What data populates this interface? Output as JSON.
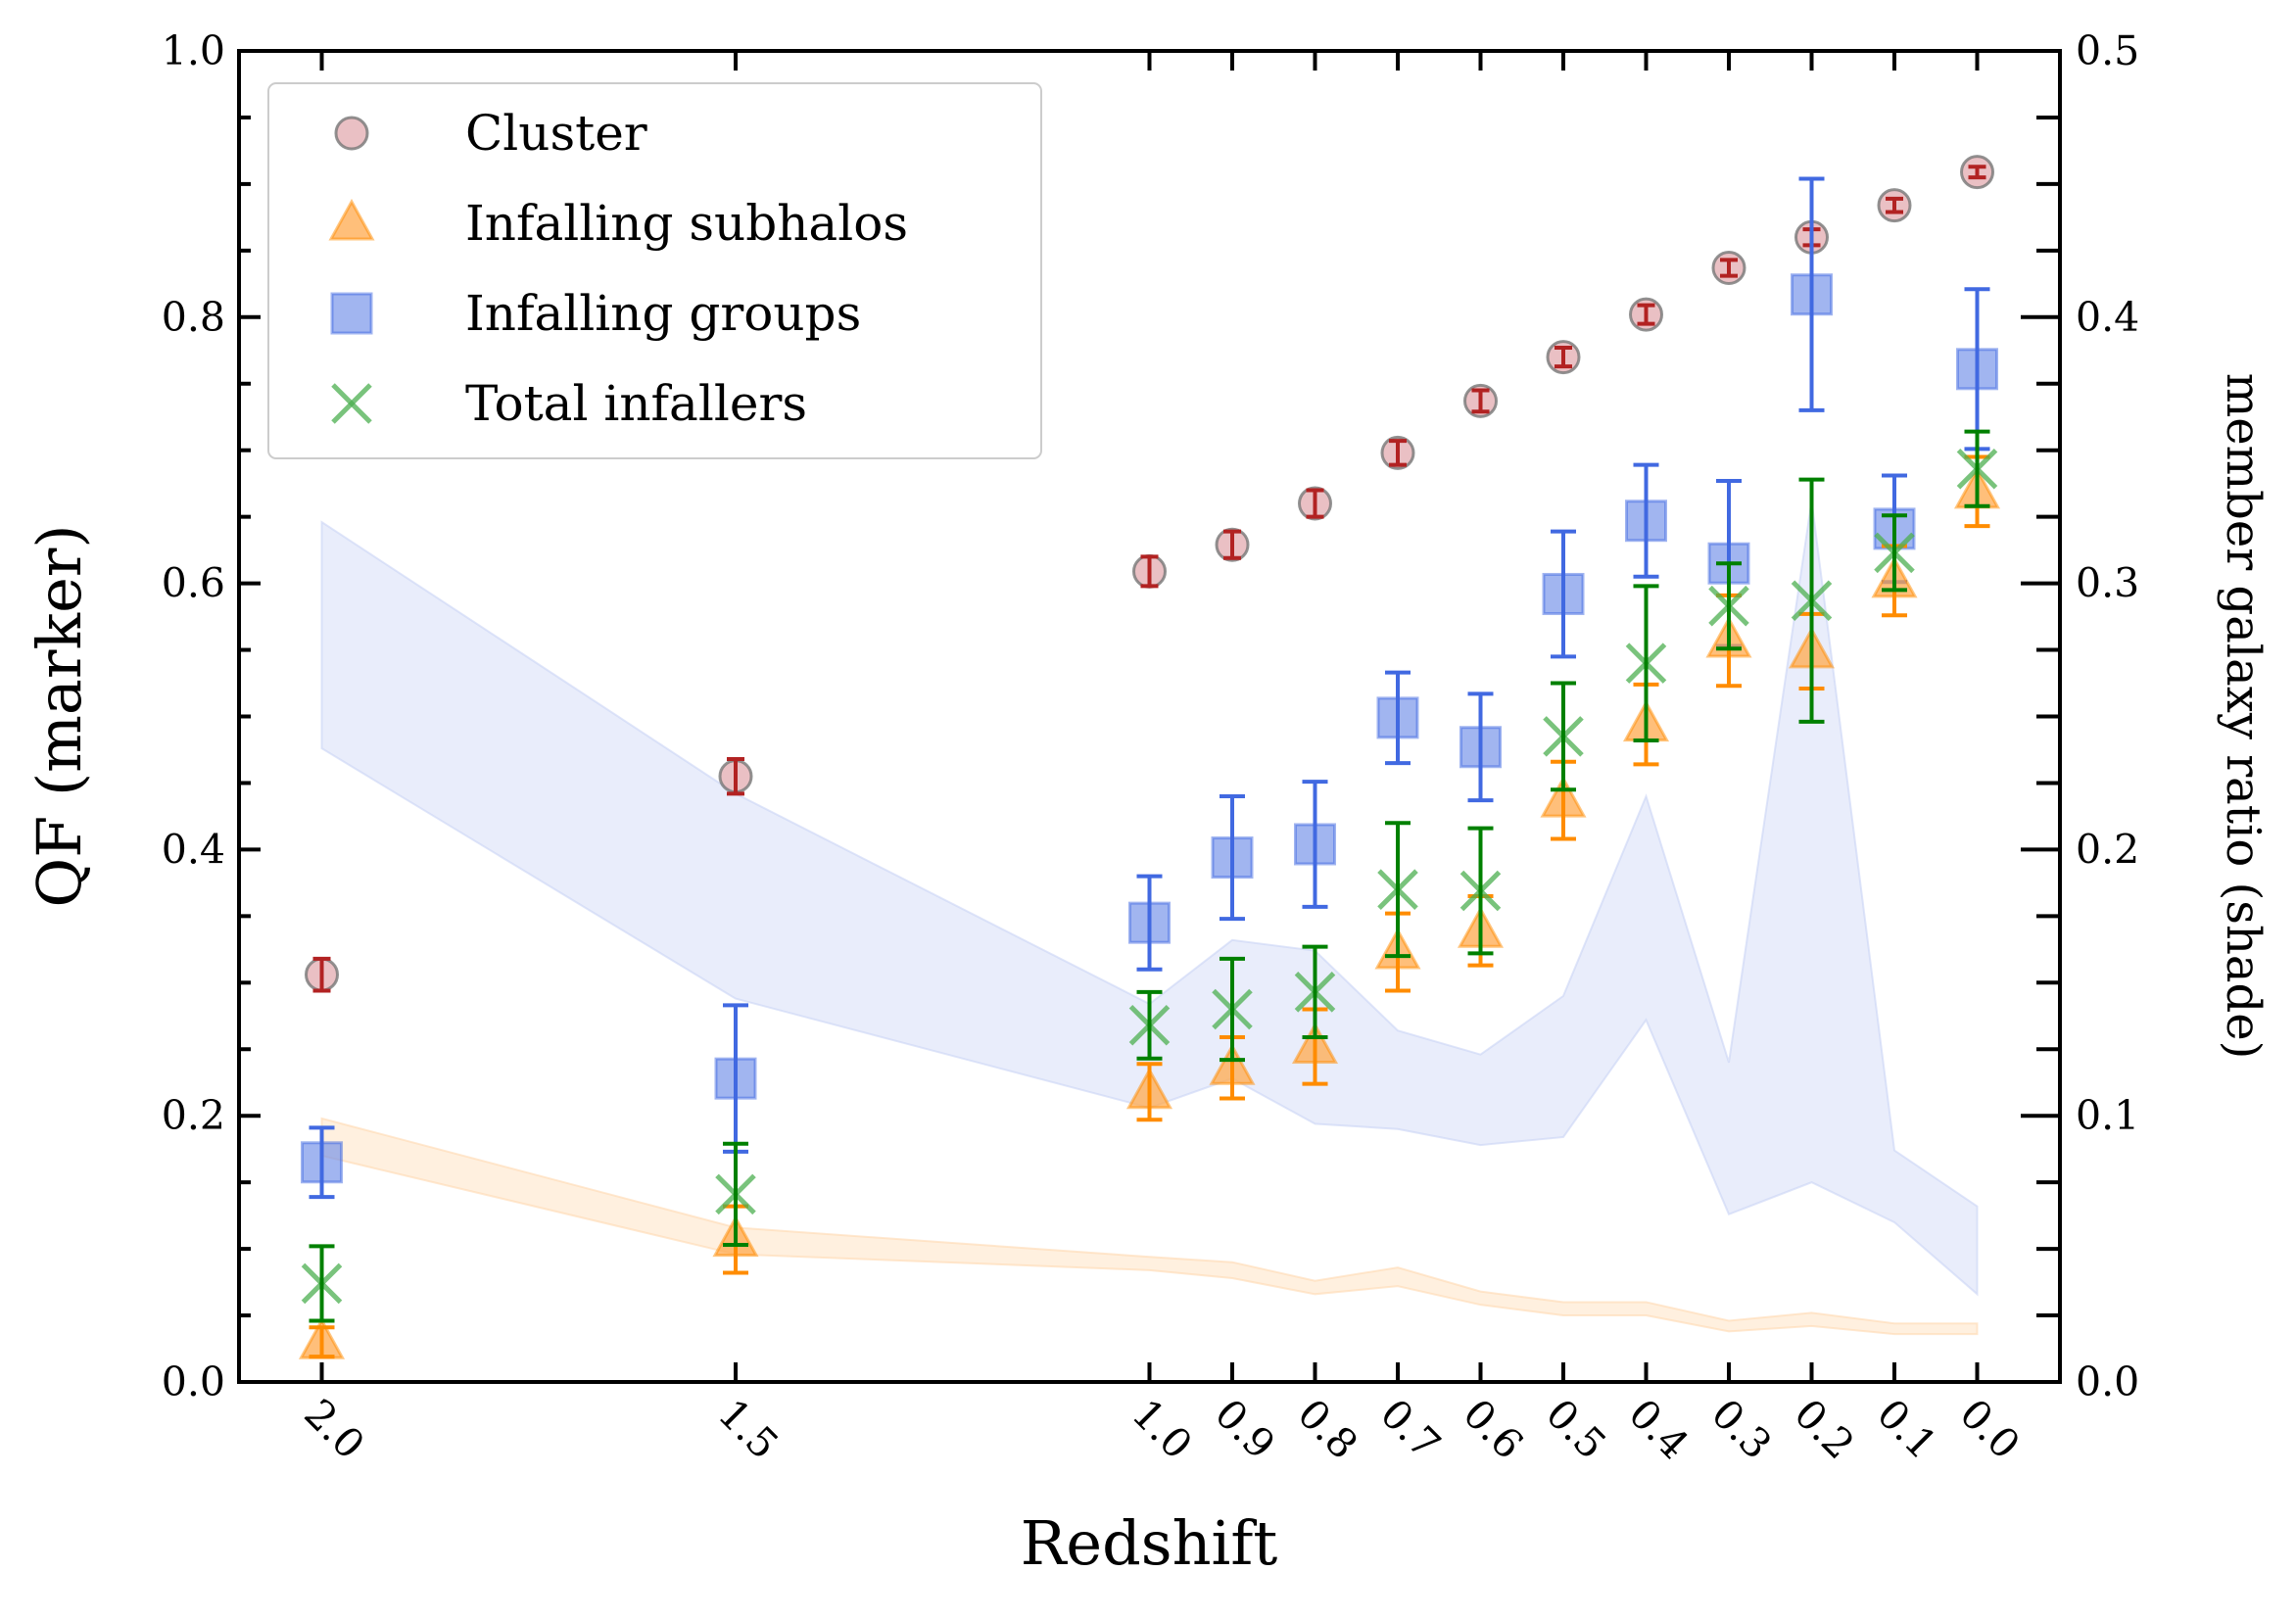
{
  "chart_data": {
    "type": "scatter",
    "xlabel": "Redshift",
    "ylabel": "QF (marker)",
    "ylabel_right": "member galaxy ratio (shade)",
    "xlim": [
      2.1,
      -0.1
    ],
    "ylim": [
      0.0,
      1.0
    ],
    "ylim_right": [
      0.0,
      0.5
    ],
    "x_ticks": [
      "2.0",
      "1.5",
      "1.0",
      "0.9",
      "0.8",
      "0.7",
      "0.6",
      "0.5",
      "0.4",
      "0.3",
      "0.2",
      "0.1",
      "0.0"
    ],
    "y_ticks": [
      "0.0",
      "0.2",
      "0.4",
      "0.6",
      "0.8",
      "1.0"
    ],
    "y_ticks_right": [
      "0.0",
      "0.1",
      "0.2",
      "0.3",
      "0.4",
      "0.5"
    ],
    "grid": false,
    "legend_position": "top-left",
    "x": [
      2.0,
      1.5,
      1.0,
      0.9,
      0.8,
      0.7,
      0.6,
      0.5,
      0.4,
      0.3,
      0.2,
      0.1,
      0.0
    ],
    "series": [
      {
        "name": "Cluster",
        "marker": "circle",
        "color": "#b22222",
        "fill": "#d98c93",
        "values": [
          0.306,
          0.455,
          0.609,
          0.629,
          0.66,
          0.698,
          0.737,
          0.77,
          0.802,
          0.837,
          0.86,
          0.884,
          0.909
        ],
        "errors": [
          0.012,
          0.013,
          0.011,
          0.01,
          0.01,
          0.009,
          0.008,
          0.007,
          0.007,
          0.006,
          0.006,
          0.005,
          0.004
        ]
      },
      {
        "name": "Infalling subhalos",
        "marker": "triangle",
        "color": "#ff8c00",
        "fill": "#ffa94d",
        "values": [
          0.03,
          0.107,
          0.218,
          0.236,
          0.252,
          0.323,
          0.339,
          0.437,
          0.494,
          0.557,
          0.549,
          0.602,
          0.669
        ],
        "errors": [
          0.011,
          0.025,
          0.021,
          0.023,
          0.028,
          0.029,
          0.026,
          0.029,
          0.03,
          0.034,
          0.028,
          0.026,
          0.026
        ]
      },
      {
        "name": "Infalling groups",
        "marker": "square",
        "color": "#4169e1",
        "fill": "#6f8ee8",
        "values": [
          0.165,
          0.228,
          0.345,
          0.394,
          0.404,
          0.499,
          0.477,
          0.592,
          0.647,
          0.615,
          0.817,
          0.641,
          0.761
        ],
        "errors": [
          0.026,
          0.055,
          0.035,
          0.046,
          0.047,
          0.034,
          0.04,
          0.047,
          0.042,
          0.062,
          0.087,
          0.04,
          0.06
        ]
      },
      {
        "name": "Total infallers",
        "marker": "x",
        "color": "#008000",
        "fill": "#4caf50",
        "values": [
          0.074,
          0.141,
          0.268,
          0.28,
          0.293,
          0.37,
          0.369,
          0.485,
          0.54,
          0.583,
          0.587,
          0.623,
          0.686
        ],
        "errors": [
          0.028,
          0.038,
          0.025,
          0.038,
          0.034,
          0.05,
          0.047,
          0.04,
          0.058,
          0.032,
          0.091,
          0.028,
          0.028
        ]
      }
    ],
    "shades": [
      {
        "series": "Infalling groups",
        "axis": "right",
        "color": "#c9d3f5",
        "upper": [
          0.323,
          0.221,
          0.142,
          0.166,
          0.162,
          0.132,
          0.123,
          0.145,
          0.22,
          0.12,
          0.331,
          0.087,
          0.066
        ],
        "lower": [
          0.238,
          0.144,
          0.103,
          0.114,
          0.097,
          0.095,
          0.089,
          0.092,
          0.136,
          0.063,
          0.075,
          0.06,
          0.033
        ]
      },
      {
        "series": "Infalling subhalos",
        "axis": "right",
        "color": "#ffd9b0",
        "upper": [
          0.099,
          0.058,
          0.047,
          0.045,
          0.038,
          0.043,
          0.034,
          0.03,
          0.03,
          0.023,
          0.026,
          0.022,
          0.022
        ],
        "lower": [
          0.085,
          0.048,
          0.042,
          0.039,
          0.033,
          0.036,
          0.029,
          0.025,
          0.025,
          0.019,
          0.021,
          0.018,
          0.018
        ]
      }
    ]
  }
}
